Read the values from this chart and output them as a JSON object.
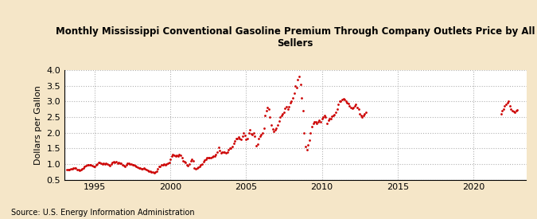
{
  "title": "Monthly Mississippi Conventional Gasoline Premium Through Company Outlets Price by All\nSellers",
  "ylabel": "Dollars per Gallon",
  "source": "Source: U.S. Energy Information Administration",
  "background_color": "#F5E6C8",
  "plot_bg_color": "#FFFFFF",
  "dot_color": "#CC0000",
  "xlim": [
    1993.0,
    2023.5
  ],
  "ylim": [
    0.5,
    4.0
  ],
  "xticks": [
    1995,
    2000,
    2005,
    2010,
    2015,
    2020
  ],
  "yticks": [
    0.5,
    1.0,
    1.5,
    2.0,
    2.5,
    3.0,
    3.5,
    4.0
  ],
  "data": [
    [
      1993.17,
      0.83
    ],
    [
      1993.25,
      0.82
    ],
    [
      1993.33,
      0.82
    ],
    [
      1993.42,
      0.84
    ],
    [
      1993.5,
      0.85
    ],
    [
      1993.58,
      0.88
    ],
    [
      1993.67,
      0.87
    ],
    [
      1993.75,
      0.86
    ],
    [
      1993.83,
      0.83
    ],
    [
      1993.92,
      0.82
    ],
    [
      1994.0,
      0.8
    ],
    [
      1994.08,
      0.83
    ],
    [
      1994.17,
      0.84
    ],
    [
      1994.25,
      0.87
    ],
    [
      1994.33,
      0.91
    ],
    [
      1994.42,
      0.95
    ],
    [
      1994.5,
      0.97
    ],
    [
      1994.58,
      0.98
    ],
    [
      1994.67,
      0.96
    ],
    [
      1994.75,
      0.97
    ],
    [
      1994.83,
      0.95
    ],
    [
      1994.92,
      0.93
    ],
    [
      1995.0,
      0.93
    ],
    [
      1995.08,
      0.96
    ],
    [
      1995.17,
      1.0
    ],
    [
      1995.25,
      1.05
    ],
    [
      1995.33,
      1.04
    ],
    [
      1995.42,
      1.03
    ],
    [
      1995.5,
      1.0
    ],
    [
      1995.58,
      1.01
    ],
    [
      1995.67,
      1.0
    ],
    [
      1995.75,
      1.01
    ],
    [
      1995.83,
      1.0
    ],
    [
      1995.92,
      0.97
    ],
    [
      1996.0,
      0.95
    ],
    [
      1996.08,
      1.0
    ],
    [
      1996.17,
      1.05
    ],
    [
      1996.25,
      1.08
    ],
    [
      1996.33,
      1.05
    ],
    [
      1996.42,
      1.07
    ],
    [
      1996.5,
      1.03
    ],
    [
      1996.58,
      1.05
    ],
    [
      1996.67,
      1.03
    ],
    [
      1996.75,
      1.01
    ],
    [
      1996.83,
      0.98
    ],
    [
      1996.92,
      0.95
    ],
    [
      1997.0,
      0.93
    ],
    [
      1997.08,
      0.96
    ],
    [
      1997.17,
      1.01
    ],
    [
      1997.25,
      1.02
    ],
    [
      1997.33,
      1.0
    ],
    [
      1997.42,
      1.0
    ],
    [
      1997.5,
      0.97
    ],
    [
      1997.58,
      0.97
    ],
    [
      1997.67,
      0.95
    ],
    [
      1997.75,
      0.92
    ],
    [
      1997.83,
      0.9
    ],
    [
      1997.92,
      0.88
    ],
    [
      1998.0,
      0.86
    ],
    [
      1998.08,
      0.85
    ],
    [
      1998.17,
      0.84
    ],
    [
      1998.25,
      0.87
    ],
    [
      1998.33,
      0.84
    ],
    [
      1998.42,
      0.83
    ],
    [
      1998.5,
      0.8
    ],
    [
      1998.58,
      0.78
    ],
    [
      1998.67,
      0.77
    ],
    [
      1998.75,
      0.75
    ],
    [
      1998.83,
      0.74
    ],
    [
      1998.92,
      0.72
    ],
    [
      1999.0,
      0.73
    ],
    [
      1999.08,
      0.78
    ],
    [
      1999.17,
      0.84
    ],
    [
      1999.25,
      0.92
    ],
    [
      1999.33,
      0.92
    ],
    [
      1999.42,
      0.96
    ],
    [
      1999.5,
      0.97
    ],
    [
      1999.58,
      0.99
    ],
    [
      1999.67,
      0.97
    ],
    [
      1999.75,
      1.0
    ],
    [
      1999.83,
      1.03
    ],
    [
      1999.92,
      1.05
    ],
    [
      2000.0,
      1.14
    ],
    [
      2000.08,
      1.24
    ],
    [
      2000.17,
      1.3
    ],
    [
      2000.25,
      1.27
    ],
    [
      2000.33,
      1.24
    ],
    [
      2000.42,
      1.28
    ],
    [
      2000.5,
      1.25
    ],
    [
      2000.58,
      1.29
    ],
    [
      2000.67,
      1.28
    ],
    [
      2000.75,
      1.2
    ],
    [
      2000.83,
      1.11
    ],
    [
      2000.92,
      1.07
    ],
    [
      2001.0,
      1.04
    ],
    [
      2001.08,
      0.98
    ],
    [
      2001.17,
      0.95
    ],
    [
      2001.25,
      1.0
    ],
    [
      2001.33,
      1.09
    ],
    [
      2001.42,
      1.15
    ],
    [
      2001.5,
      1.1
    ],
    [
      2001.58,
      0.87
    ],
    [
      2001.67,
      0.85
    ],
    [
      2001.75,
      0.88
    ],
    [
      2001.83,
      0.9
    ],
    [
      2001.92,
      0.93
    ],
    [
      2002.0,
      0.97
    ],
    [
      2002.08,
      1.0
    ],
    [
      2002.17,
      1.08
    ],
    [
      2002.25,
      1.12
    ],
    [
      2002.33,
      1.15
    ],
    [
      2002.42,
      1.19
    ],
    [
      2002.5,
      1.2
    ],
    [
      2002.58,
      1.21
    ],
    [
      2002.67,
      1.19
    ],
    [
      2002.75,
      1.22
    ],
    [
      2002.83,
      1.24
    ],
    [
      2002.92,
      1.25
    ],
    [
      2003.0,
      1.3
    ],
    [
      2003.08,
      1.37
    ],
    [
      2003.17,
      1.52
    ],
    [
      2003.25,
      1.42
    ],
    [
      2003.33,
      1.35
    ],
    [
      2003.42,
      1.38
    ],
    [
      2003.5,
      1.38
    ],
    [
      2003.58,
      1.37
    ],
    [
      2003.67,
      1.35
    ],
    [
      2003.75,
      1.38
    ],
    [
      2003.83,
      1.45
    ],
    [
      2003.92,
      1.5
    ],
    [
      2004.0,
      1.5
    ],
    [
      2004.08,
      1.55
    ],
    [
      2004.17,
      1.65
    ],
    [
      2004.25,
      1.73
    ],
    [
      2004.33,
      1.82
    ],
    [
      2004.42,
      1.82
    ],
    [
      2004.5,
      1.85
    ],
    [
      2004.58,
      1.8
    ],
    [
      2004.67,
      1.78
    ],
    [
      2004.75,
      1.9
    ],
    [
      2004.83,
      2.0
    ],
    [
      2004.92,
      1.92
    ],
    [
      2005.0,
      1.79
    ],
    [
      2005.08,
      1.82
    ],
    [
      2005.17,
      2.0
    ],
    [
      2005.25,
      2.08
    ],
    [
      2005.33,
      1.97
    ],
    [
      2005.42,
      1.95
    ],
    [
      2005.5,
      2.0
    ],
    [
      2005.58,
      1.88
    ],
    [
      2005.67,
      1.57
    ],
    [
      2005.75,
      1.64
    ],
    [
      2005.83,
      1.8
    ],
    [
      2005.92,
      1.88
    ],
    [
      2006.0,
      1.95
    ],
    [
      2006.08,
      2.0
    ],
    [
      2006.17,
      2.15
    ],
    [
      2006.25,
      2.55
    ],
    [
      2006.33,
      2.7
    ],
    [
      2006.42,
      2.8
    ],
    [
      2006.5,
      2.75
    ],
    [
      2006.58,
      2.5
    ],
    [
      2006.67,
      2.25
    ],
    [
      2006.75,
      2.12
    ],
    [
      2006.83,
      2.05
    ],
    [
      2006.92,
      2.1
    ],
    [
      2007.0,
      2.15
    ],
    [
      2007.08,
      2.25
    ],
    [
      2007.17,
      2.38
    ],
    [
      2007.25,
      2.5
    ],
    [
      2007.33,
      2.55
    ],
    [
      2007.42,
      2.6
    ],
    [
      2007.5,
      2.65
    ],
    [
      2007.58,
      2.78
    ],
    [
      2007.67,
      2.82
    ],
    [
      2007.75,
      2.76
    ],
    [
      2007.83,
      2.82
    ],
    [
      2007.92,
      2.95
    ],
    [
      2008.0,
      3.0
    ],
    [
      2008.08,
      3.1
    ],
    [
      2008.17,
      3.25
    ],
    [
      2008.25,
      3.5
    ],
    [
      2008.33,
      3.45
    ],
    [
      2008.42,
      3.7
    ],
    [
      2008.5,
      3.8
    ],
    [
      2008.58,
      3.55
    ],
    [
      2008.67,
      3.1
    ],
    [
      2008.75,
      2.7
    ],
    [
      2008.83,
      2.0
    ],
    [
      2008.92,
      1.55
    ],
    [
      2009.0,
      1.45
    ],
    [
      2009.08,
      1.6
    ],
    [
      2009.17,
      1.75
    ],
    [
      2009.25,
      2.0
    ],
    [
      2009.33,
      2.2
    ],
    [
      2009.42,
      2.3
    ],
    [
      2009.5,
      2.35
    ],
    [
      2009.58,
      2.35
    ],
    [
      2009.67,
      2.3
    ],
    [
      2009.75,
      2.35
    ],
    [
      2009.83,
      2.4
    ],
    [
      2009.92,
      2.35
    ],
    [
      2010.0,
      2.45
    ],
    [
      2010.08,
      2.5
    ],
    [
      2010.17,
      2.55
    ],
    [
      2010.25,
      2.5
    ],
    [
      2010.33,
      2.3
    ],
    [
      2010.42,
      2.4
    ],
    [
      2010.5,
      2.45
    ],
    [
      2010.58,
      2.45
    ],
    [
      2010.67,
      2.52
    ],
    [
      2010.75,
      2.55
    ],
    [
      2010.83,
      2.58
    ],
    [
      2010.92,
      2.65
    ],
    [
      2011.0,
      2.75
    ],
    [
      2011.08,
      2.9
    ],
    [
      2011.17,
      3.0
    ],
    [
      2011.25,
      3.02
    ],
    [
      2011.33,
      3.05
    ],
    [
      2011.42,
      3.08
    ],
    [
      2011.5,
      3.05
    ],
    [
      2011.58,
      3.0
    ],
    [
      2011.67,
      2.95
    ],
    [
      2011.75,
      2.92
    ],
    [
      2011.83,
      2.85
    ],
    [
      2011.92,
      2.8
    ],
    [
      2012.0,
      2.78
    ],
    [
      2012.08,
      2.8
    ],
    [
      2012.17,
      2.85
    ],
    [
      2012.25,
      2.9
    ],
    [
      2012.33,
      2.8
    ],
    [
      2012.42,
      2.75
    ],
    [
      2012.5,
      2.6
    ],
    [
      2012.58,
      2.55
    ],
    [
      2012.67,
      2.5
    ],
    [
      2012.75,
      2.55
    ],
    [
      2012.83,
      2.6
    ],
    [
      2012.92,
      2.65
    ],
    [
      2021.83,
      2.6
    ],
    [
      2021.92,
      2.7
    ],
    [
      2022.0,
      2.75
    ],
    [
      2022.08,
      2.85
    ],
    [
      2022.17,
      2.9
    ],
    [
      2022.25,
      2.95
    ],
    [
      2022.33,
      3.0
    ],
    [
      2022.42,
      2.85
    ],
    [
      2022.5,
      2.75
    ],
    [
      2022.58,
      2.7
    ],
    [
      2022.67,
      2.68
    ],
    [
      2022.75,
      2.65
    ],
    [
      2022.83,
      2.7
    ],
    [
      2022.92,
      2.72
    ]
  ]
}
